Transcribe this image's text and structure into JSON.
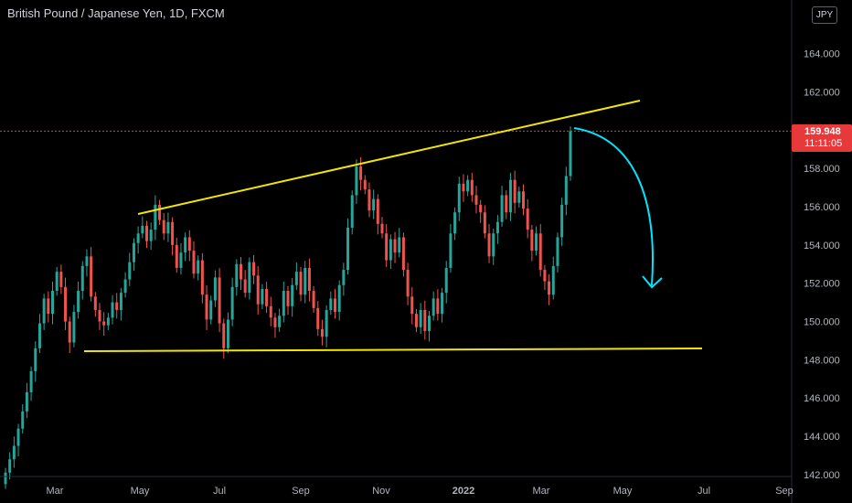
{
  "header": {
    "title": "British Pound / Japanese Yen, 1D, FXCM",
    "currency": "JPY"
  },
  "price_label": {
    "value": "159.948",
    "countdown": "11:11:05"
  },
  "colors": {
    "background": "#000000",
    "up_candle": "#26a69a",
    "down_candle": "#ef5350",
    "trendline": "#f2e600",
    "arrow": "#00e5ff",
    "current_price_line": "#e8393a",
    "axis_text": "#b2b5be"
  },
  "chart_data": {
    "type": "candlestick",
    "title": "British Pound / Japanese Yen, 1D, FXCM",
    "x_ticks": [
      "Mar",
      "May",
      "Jul",
      "Sep",
      "Nov",
      "2022",
      "Mar",
      "May",
      "Jul",
      "Sep"
    ],
    "y_ticks": [
      "142.000",
      "144.000",
      "146.000",
      "148.000",
      "150.000",
      "152.000",
      "154.000",
      "156.000",
      "158.000",
      "160.000",
      "162.000",
      "164.000"
    ],
    "ylim": [
      141.9,
      166.8
    ],
    "current_price": 159.948,
    "series_close": [
      142.1,
      142.8,
      143.5,
      144.4,
      145.3,
      146.3,
      147.4,
      148.6,
      149.9,
      151.2,
      150.4,
      151.6,
      152.6,
      151.8,
      150.0,
      148.9,
      150.5,
      151.6,
      152.9,
      153.4,
      151.3,
      150.6,
      150.0,
      149.8,
      150.2,
      151.0,
      150.6,
      151.5,
      152.2,
      153.1,
      154.1,
      154.6,
      155.0,
      154.2,
      154.8,
      156.1,
      155.3,
      154.6,
      155.2,
      154.0,
      152.8,
      153.6,
      154.4,
      153.7,
      152.5,
      153.2,
      151.4,
      150.1,
      151.1,
      152.3,
      149.9,
      148.6,
      150.1,
      151.8,
      153.0,
      152.2,
      151.5,
      153.1,
      152.4,
      150.9,
      151.7,
      150.8,
      150.2,
      149.7,
      150.3,
      151.6,
      150.8,
      151.9,
      152.6,
      151.4,
      152.8,
      151.6,
      150.7,
      149.6,
      149.2,
      150.6,
      151.2,
      150.5,
      151.9,
      152.7,
      154.9,
      156.6,
      158.1,
      157.4,
      156.9,
      155.8,
      156.4,
      155.1,
      154.6,
      153.2,
      154.3,
      153.6,
      154.4,
      152.7,
      151.3,
      150.4,
      149.7,
      150.6,
      149.5,
      150.3,
      151.2,
      150.4,
      151.5,
      152.8,
      154.6,
      155.7,
      157.2,
      156.8,
      157.4,
      156.6,
      156.1,
      155.7,
      154.6,
      153.4,
      154.6,
      155.2,
      156.6,
      155.7,
      157.4,
      156.2,
      156.8,
      155.9,
      154.8,
      153.7,
      154.6,
      152.7,
      152.1,
      151.4,
      152.9,
      154.4,
      156.1,
      157.6,
      159.948
    ]
  }
}
